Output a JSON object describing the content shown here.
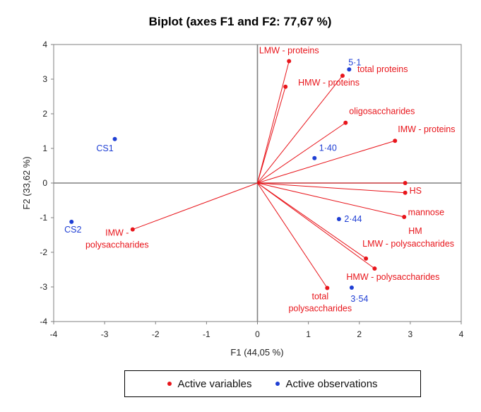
{
  "chart_data": {
    "type": "scatter",
    "title": "Biplot (axes F1 and F2: 77,67 %)",
    "xlabel": "F1 (44,05 %)",
    "ylabel": "F2 (33,62 %)",
    "xlim": [
      -4,
      4
    ],
    "ylim": [
      -4,
      4
    ],
    "xticks": [
      "-4",
      "-3",
      "-2",
      "-1",
      "0",
      "1",
      "2",
      "3",
      "4"
    ],
    "yticks": [
      "-4",
      "-3",
      "-2",
      "-1",
      "0",
      "1",
      "2",
      "3",
      "4"
    ],
    "grid": false,
    "legend_position": "bottom",
    "colors": {
      "variables": "#e8151b",
      "observations": "#1f3fd4",
      "axes": "#808080"
    },
    "series": [
      {
        "name": "Active variables",
        "kind": "vectors",
        "points": [
          {
            "label": "LMW - proteins",
            "x": 0.62,
            "y": 3.52
          },
          {
            "label": "HMW - proteins",
            "x": 0.55,
            "y": 2.78
          },
          {
            "label": "total proteins",
            "x": 1.67,
            "y": 3.1
          },
          {
            "label": "oligosaccharides",
            "x": 1.73,
            "y": 1.74
          },
          {
            "label": "IMW - proteins",
            "x": 2.7,
            "y": 1.22
          },
          {
            "label": "HS",
            "x": 2.9,
            "y": 0
          },
          {
            "label": "mannose",
            "x": 2.9,
            "y": -0.28
          },
          {
            "label": "HM",
            "x": 2.88,
            "y": -0.98
          },
          {
            "label": "LMW - polysaccharides",
            "x": 2.13,
            "y": -2.18
          },
          {
            "label": "HMW - polysaccharides",
            "x": 2.3,
            "y": -2.47
          },
          {
            "label": "total polysaccharides",
            "x": 1.37,
            "y": -3.03
          },
          {
            "label": "IMW - polysaccharides",
            "x": -2.45,
            "y": -1.34
          }
        ]
      },
      {
        "name": "Active observations",
        "kind": "points",
        "points": [
          {
            "label": "5·1",
            "x": 1.8,
            "y": 3.28
          },
          {
            "label": "1·40",
            "x": 1.12,
            "y": 0.72
          },
          {
            "label": "2·44",
            "x": 1.6,
            "y": -1.04
          },
          {
            "label": "3·54",
            "x": 1.85,
            "y": -3.02
          },
          {
            "label": "CS1",
            "x": -2.8,
            "y": 1.27
          },
          {
            "label": "CS2",
            "x": -3.65,
            "y": -1.12
          }
        ]
      }
    ]
  }
}
